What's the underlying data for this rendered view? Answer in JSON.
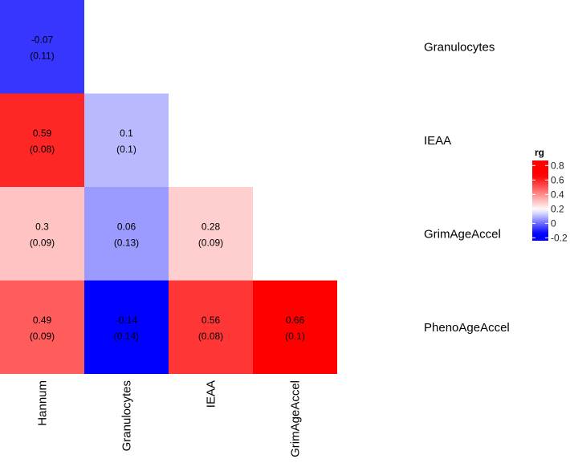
{
  "chart_data": {
    "type": "heatmap",
    "title": "",
    "columns": [
      "Hannum",
      "Granulocytes",
      "IEAA",
      "GrimAgeAccel"
    ],
    "rows": [
      "Granulocytes",
      "IEAA",
      "GrimAgeAccel",
      "PhenoAgeAccel"
    ],
    "cells": [
      {
        "row": 0,
        "col": 0,
        "value": -0.07,
        "label": "-0.07",
        "se_label": "(0.11)"
      },
      {
        "row": 1,
        "col": 0,
        "value": 0.59,
        "label": "0.59",
        "se_label": "(0.08)"
      },
      {
        "row": 1,
        "col": 1,
        "value": 0.1,
        "label": "0.1",
        "se_label": "(0.1)"
      },
      {
        "row": 2,
        "col": 0,
        "value": 0.3,
        "label": "0.3",
        "se_label": "(0.09)"
      },
      {
        "row": 2,
        "col": 1,
        "value": 0.06,
        "label": "0.06",
        "se_label": "(0.13)"
      },
      {
        "row": 2,
        "col": 2,
        "value": 0.28,
        "label": "0.28",
        "se_label": "(0.09)"
      },
      {
        "row": 3,
        "col": 0,
        "value": 0.49,
        "label": "0.49",
        "se_label": "(0.09)"
      },
      {
        "row": 3,
        "col": 1,
        "value": -0.14,
        "label": "-0.14",
        "se_label": "(0.14)"
      },
      {
        "row": 3,
        "col": 2,
        "value": 0.56,
        "label": "0.56",
        "se_label": "(0.08)"
      },
      {
        "row": 3,
        "col": 3,
        "value": 0.66,
        "label": "0.66",
        "se_label": "(0.1)"
      }
    ],
    "color_scale": {
      "low_color": "#0000ff",
      "mid_color": "#ffffff",
      "high_color": "#ff0000",
      "min": -0.14,
      "mid": 0.19,
      "max": 0.66,
      "visual_min": -0.24,
      "visual_max": 0.87
    },
    "legend": {
      "title": "rg",
      "position": "right",
      "ticks": [
        {
          "value": 0.8,
          "label": "0.8"
        },
        {
          "value": 0.6,
          "label": "0.6"
        },
        {
          "value": 0.4,
          "label": "0.4"
        },
        {
          "value": 0.2,
          "label": "0.2"
        },
        {
          "value": 0.0,
          "label": "0"
        },
        {
          "value": -0.2,
          "label": "-0.2"
        }
      ]
    }
  }
}
